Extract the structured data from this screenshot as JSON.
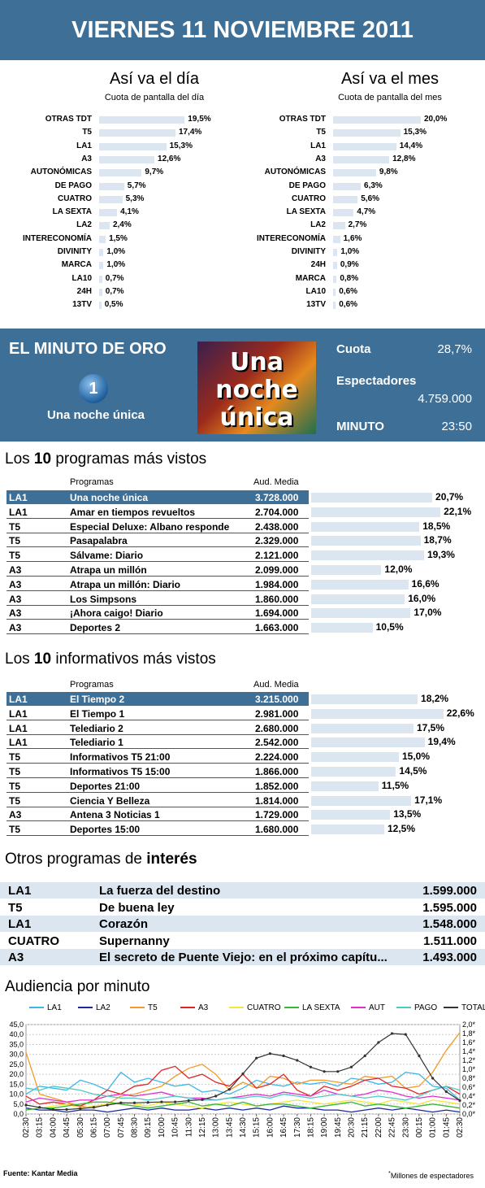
{
  "header": {
    "title": "VIERNES 11 NOVIEMBRE 2011"
  },
  "day": {
    "title": "Así va el día",
    "subtitle": "Cuota de pantalla del día",
    "items": [
      [
        "OTRAS TDT",
        "19,5%",
        19.5
      ],
      [
        "T5",
        "17,4%",
        17.4
      ],
      [
        "LA1",
        "15,3%",
        15.3
      ],
      [
        "A3",
        "12,6%",
        12.6
      ],
      [
        "AUTONÓMICAS",
        "9,7%",
        9.7
      ],
      [
        "DE PAGO",
        "5,7%",
        5.7
      ],
      [
        "CUATRO",
        "5,3%",
        5.3
      ],
      [
        "LA SEXTA",
        "4,1%",
        4.1
      ],
      [
        "LA2",
        "2,4%",
        2.4
      ],
      [
        "INTERECONOMÍA",
        "1,5%",
        1.5
      ],
      [
        "DIVINITY",
        "1,0%",
        1.0
      ],
      [
        "MARCA",
        "1,0%",
        1.0
      ],
      [
        "LA10",
        "0,7%",
        0.7
      ],
      [
        "24H",
        "0,7%",
        0.7
      ],
      [
        "13TV",
        "0,5%",
        0.5
      ]
    ]
  },
  "month": {
    "title": "Así va el mes",
    "subtitle": "Cuota de pantalla del mes",
    "items": [
      [
        "OTRAS TDT",
        "20,0%",
        20.0
      ],
      [
        "T5",
        "15,3%",
        15.3
      ],
      [
        "LA1",
        "14,4%",
        14.4
      ],
      [
        "A3",
        "12,8%",
        12.8
      ],
      [
        "AUTONÓMICAS",
        "9,8%",
        9.8
      ],
      [
        "DE PAGO",
        "6,3%",
        6.3
      ],
      [
        "CUATRO",
        "5,6%",
        5.6
      ],
      [
        "LA SEXTA",
        "4,7%",
        4.7
      ],
      [
        "LA2",
        "2,7%",
        2.7
      ],
      [
        "INTERECONOMÍA",
        "1,6%",
        1.6
      ],
      [
        "DIVINITY",
        "1,0%",
        1.0
      ],
      [
        "24H",
        "0,9%",
        0.9
      ],
      [
        "MARCA",
        "0,8%",
        0.8
      ],
      [
        "LA10",
        "0,6%",
        0.6
      ],
      [
        "13TV",
        "0,6%",
        0.6
      ]
    ]
  },
  "gold": {
    "title": "EL MINUTO DE ORO",
    "channel_logo": "1",
    "program": "Una noche única",
    "poster_l1": "Una",
    "poster_l2": "noche",
    "poster_l3": "única",
    "cuota_label": "Cuota",
    "cuota": "28,7%",
    "esp_label": "Espectadores",
    "esp": "4.759.000",
    "min_label": "MINUTO",
    "min": "23:50"
  },
  "top_programs": {
    "title_a": "Los ",
    "title_b": "10",
    "title_c": " programas más vistos",
    "col_prog": "Programas",
    "col_aud": "Aud. Media",
    "rows": [
      [
        "LA1",
        "Una noche única",
        "3.728.000",
        "20,7%",
        20.7
      ],
      [
        "LA1",
        "Amar en tiempos revueltos",
        "2.704.000",
        "22,1%",
        22.1
      ],
      [
        "T5",
        "Especial Deluxe: Albano responde",
        "2.438.000",
        "18,5%",
        18.5
      ],
      [
        "T5",
        "Pasapalabra",
        "2.329.000",
        "18,7%",
        18.7
      ],
      [
        "T5",
        "Sálvame: Diario",
        "2.121.000",
        "19,3%",
        19.3
      ],
      [
        "A3",
        "Atrapa un millón",
        "2.099.000",
        "12,0%",
        12.0
      ],
      [
        "A3",
        "Atrapa un millón: Diario",
        "1.984.000",
        "16,6%",
        16.6
      ],
      [
        "A3",
        "Los Simpsons",
        "1.860.000",
        "16,0%",
        16.0
      ],
      [
        "A3",
        "¡Ahora caigo! Diario",
        "1.694.000",
        "17,0%",
        17.0
      ],
      [
        "A3",
        "Deportes 2",
        "1.663.000",
        "10,5%",
        10.5
      ]
    ]
  },
  "top_news": {
    "title_a": "Los ",
    "title_b": "10",
    "title_c": " informativos más vistos",
    "col_prog": "Programas",
    "col_aud": "Aud. Media",
    "rows": [
      [
        "LA1",
        "El Tiempo 2",
        "3.215.000",
        "18,2%",
        18.2
      ],
      [
        "LA1",
        "El Tiempo 1",
        "2.981.000",
        "22,6%",
        22.6
      ],
      [
        "LA1",
        "Telediario 2",
        "2.680.000",
        "17,5%",
        17.5
      ],
      [
        "LA1",
        "Telediario 1",
        "2.542.000",
        "19,4%",
        19.4
      ],
      [
        "T5",
        "Informativos T5 21:00",
        "2.224.000",
        "15,0%",
        15.0
      ],
      [
        "T5",
        "Informativos T5 15:00",
        "1.866.000",
        "14,5%",
        14.5
      ],
      [
        "T5",
        "Deportes 21:00",
        "1.852.000",
        "11,5%",
        11.5
      ],
      [
        "T5",
        "Ciencia Y Belleza",
        "1.814.000",
        "17,1%",
        17.1
      ],
      [
        "A3",
        "Antena 3 Noticias 1",
        "1.729.000",
        "13,5%",
        13.5
      ],
      [
        "T5",
        "Deportes 15:00",
        "1.680.000",
        "12,5%",
        12.5
      ]
    ]
  },
  "others": {
    "title_a": "Otros programas de ",
    "title_b": "interés",
    "rows": [
      [
        "LA1",
        "La fuerza del destino",
        "1.599.000"
      ],
      [
        "T5",
        "De buena ley",
        "1.595.000"
      ],
      [
        "LA1",
        "Corazón",
        "1.548.000"
      ],
      [
        "CUATRO",
        "Supernanny",
        "1.511.000"
      ],
      [
        "A3",
        "El secreto de Puente Viejo: en el próximo capítu...",
        "1.493.000"
      ]
    ]
  },
  "chart_data": {
    "type": "line",
    "title": "Audiencia por minuto",
    "x": [
      "02:30",
      "03:15",
      "04:00",
      "04:45",
      "05:30",
      "06:15",
      "07:00",
      "07:45",
      "08:30",
      "09:15",
      "10:00",
      "10:45",
      "11:30",
      "12:15",
      "13:00",
      "13:45",
      "14:30",
      "15:15",
      "16:00",
      "16:45",
      "17:30",
      "18:15",
      "19:00",
      "19:45",
      "20:30",
      "21:15",
      "22:00",
      "22:45",
      "23:30",
      "00:15",
      "01:00",
      "01:45",
      "02:30"
    ],
    "ylim": [
      0,
      45
    ],
    "y_ticks": [
      "0,0",
      "5,0",
      "10,0",
      "15,0",
      "20,0",
      "25,0",
      "30,0",
      "35,0",
      "40,0",
      "45,0"
    ],
    "y2lim": [
      0,
      2.0
    ],
    "y2_ticks": [
      "0,0*",
      "0,2*",
      "0,4*",
      "0,6*",
      "0,8*",
      "1,0*",
      "1,2*",
      "1,4*",
      "1,6*",
      "1,8*",
      "2,0*"
    ],
    "series": [
      {
        "name": "LA1",
        "color": "#3fb6e8",
        "values": [
          10,
          14,
          13,
          12,
          17,
          15,
          12,
          21,
          16,
          18,
          16,
          14,
          15,
          11,
          12,
          10,
          13,
          17,
          15,
          14,
          16,
          15,
          16,
          14,
          18,
          17,
          15,
          16,
          21,
          20,
          14,
          13,
          7
        ]
      },
      {
        "name": "LA2",
        "color": "#1a2a9c",
        "values": [
          3,
          2,
          2,
          1,
          2,
          2,
          1,
          2,
          3,
          2,
          3,
          2,
          2,
          3,
          2,
          3,
          2,
          3,
          2,
          4,
          3,
          3,
          2,
          2,
          1,
          2,
          3,
          2,
          3,
          2,
          1,
          2,
          1
        ]
      },
      {
        "name": "T5",
        "color": "#f39a2a",
        "values": [
          31,
          10,
          8,
          6,
          4,
          3,
          5,
          9,
          10,
          12,
          14,
          19,
          23,
          25,
          20,
          12,
          16,
          13,
          19,
          18,
          15,
          17,
          17,
          16,
          15,
          19,
          18,
          19,
          13,
          14,
          21,
          32,
          41
        ]
      },
      {
        "name": "A3",
        "color": "#e02424",
        "values": [
          9,
          5,
          6,
          5,
          4,
          7,
          12,
          10,
          14,
          15,
          22,
          24,
          18,
          20,
          16,
          14,
          20,
          13,
          15,
          20,
          12,
          9,
          14,
          12,
          14,
          17,
          18,
          14,
          13,
          10,
          12,
          14,
          10
        ]
      },
      {
        "name": "CUATRO",
        "color": "#f5e63a",
        "values": [
          2,
          3,
          4,
          5,
          3,
          4,
          5,
          6,
          5,
          4,
          6,
          5,
          4,
          3,
          5,
          6,
          5,
          4,
          5,
          6,
          7,
          6,
          5,
          6,
          7,
          6,
          5,
          7,
          6,
          5,
          7,
          6,
          5
        ]
      },
      {
        "name": "LA SEXTA",
        "color": "#37b837",
        "values": [
          2,
          3,
          3,
          4,
          5,
          6,
          6,
          5,
          4,
          3,
          4,
          5,
          6,
          4,
          5,
          4,
          6,
          4,
          5,
          5,
          4,
          3,
          4,
          5,
          6,
          4,
          5,
          4,
          3,
          4,
          5,
          4,
          3
        ]
      },
      {
        "name": "AUT",
        "color": "#e22ec9",
        "values": [
          6,
          8,
          7,
          6,
          7,
          7,
          9,
          10,
          9,
          10,
          11,
          9,
          8,
          8,
          7,
          8,
          9,
          10,
          9,
          11,
          10,
          9,
          12,
          10,
          9,
          10,
          12,
          11,
          9,
          8,
          9,
          8,
          7
        ]
      },
      {
        "name": "PAGO",
        "color": "#4fc8c8",
        "values": [
          13,
          12,
          14,
          13,
          12,
          10,
          9,
          8,
          8,
          7,
          8,
          9,
          8,
          7,
          7,
          8,
          8,
          9,
          8,
          10,
          9,
          8,
          9,
          10,
          9,
          8,
          9,
          8,
          7,
          9,
          12,
          14,
          12
        ]
      }
    ],
    "total": {
      "name": "TOTAL",
      "color": "#333333",
      "values": [
        0.2,
        0.15,
        0.1,
        0.1,
        0.12,
        0.15,
        0.2,
        0.25,
        0.25,
        0.26,
        0.27,
        0.27,
        0.3,
        0.32,
        0.4,
        0.55,
        0.9,
        1.25,
        1.35,
        1.3,
        1.2,
        1.05,
        0.95,
        0.95,
        1.05,
        1.3,
        1.6,
        1.8,
        1.78,
        1.3,
        0.8,
        0.5,
        0.3
      ]
    },
    "footnote": "Millones de espectadores"
  },
  "footer": {
    "source": "Fuente:  Kantar Media",
    "asterisk": "*"
  }
}
